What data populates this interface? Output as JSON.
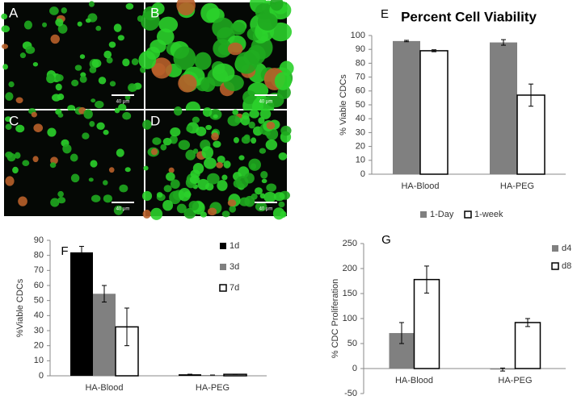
{
  "images": [
    {
      "label": "A",
      "scale_bar": "40 μm"
    },
    {
      "label": "B",
      "scale_bar": "40 μm"
    },
    {
      "label": "C",
      "scale_bar": "40 μm"
    },
    {
      "label": "D",
      "scale_bar": "40 μm"
    }
  ],
  "chart_data": [
    {
      "type": "bar",
      "panel_label": "E",
      "title": "Percent Cell Viability",
      "y_label": "% Viable CDCs",
      "categories": [
        "HA-Blood",
        "HA-PEG"
      ],
      "series": [
        {
          "name": "1-Day",
          "color": "#808080",
          "values": [
            96,
            95
          ],
          "errors": [
            0.5,
            2
          ]
        },
        {
          "name": "1-week",
          "color": "#ffffff",
          "values": [
            89,
            57
          ],
          "errors": [
            0.7,
            8
          ]
        }
      ],
      "ylim": [
        0,
        100
      ],
      "yticks": [
        0,
        10,
        20,
        30,
        40,
        50,
        60,
        70,
        80,
        90,
        100
      ],
      "legend": "bottom"
    },
    {
      "type": "bar",
      "panel_label": "F",
      "y_label": "%Viable CDCs",
      "categories": [
        "HA-Blood",
        "HA-PEG"
      ],
      "series": [
        {
          "name": "1d",
          "color": "#000000",
          "values": [
            82,
            1
          ],
          "errors": [
            4,
            0
          ]
        },
        {
          "name": "3d",
          "color": "#808080",
          "values": [
            54.5,
            0.5
          ],
          "errors": [
            5.5,
            0
          ]
        },
        {
          "name": "7d",
          "color": "#ffffff",
          "values": [
            32.5,
            1
          ],
          "errors": [
            12.5,
            0
          ]
        }
      ],
      "ylim": [
        0,
        90
      ],
      "yticks": [
        0,
        10,
        20,
        30,
        40,
        50,
        60,
        70,
        80,
        90
      ],
      "legend": "right"
    },
    {
      "type": "bar",
      "panel_label": "G",
      "y_label": "% CDC Proliferation",
      "categories": [
        "HA-Blood",
        "HA-PEG"
      ],
      "series": [
        {
          "name": "d4",
          "color": "#808080",
          "values": [
            71,
            -2
          ],
          "errors": [
            21,
            3
          ]
        },
        {
          "name": "d8",
          "color": "#ffffff",
          "values": [
            178,
            92
          ],
          "errors": [
            27,
            8
          ]
        }
      ],
      "ylim": [
        -50,
        250
      ],
      "yticks": [
        -50,
        0,
        50,
        100,
        150,
        200,
        250
      ],
      "legend": "right"
    }
  ]
}
